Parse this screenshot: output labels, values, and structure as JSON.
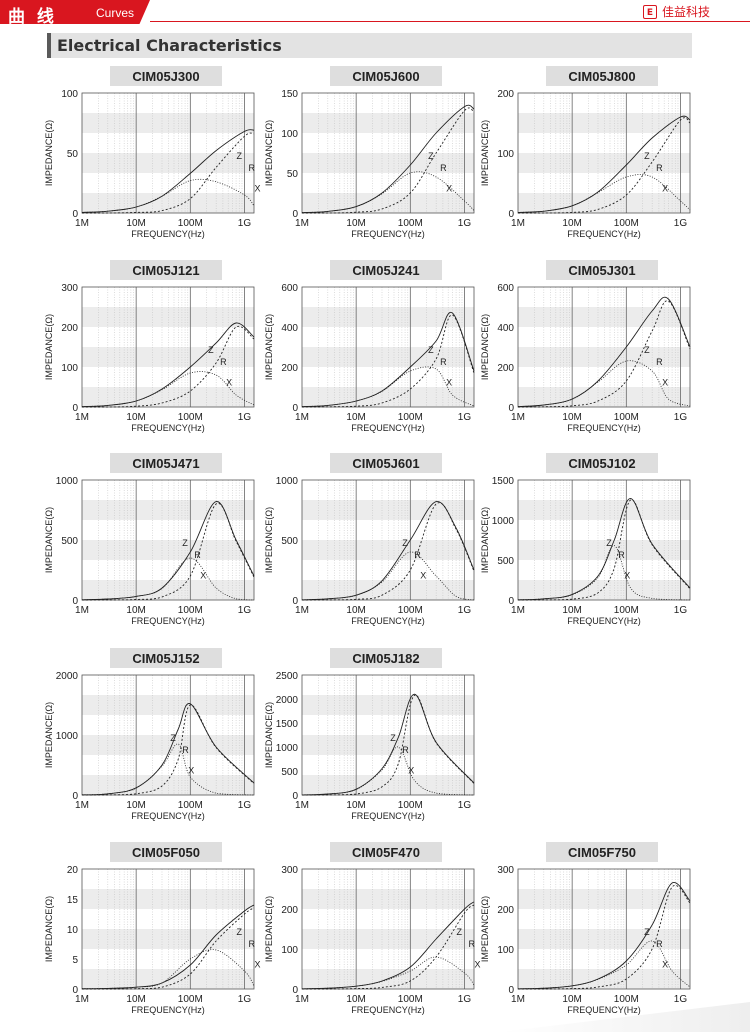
{
  "header": {
    "title_cn": "曲 线",
    "title_en": "Curves",
    "brand": "佳益科技",
    "brand_icon": "E"
  },
  "section": {
    "title": "Electrical Characteristics"
  },
  "axis": {
    "xlabel": "FREQUENCY(Hz)",
    "ylabel": "IMPEDANCE(Ω)",
    "xticks": [
      "1M",
      "10M",
      "100M",
      "1G"
    ]
  },
  "colors": {
    "accent": "#d9161f",
    "curve": "#222222",
    "grid_band": "#ececec",
    "title_bg": "#dedede"
  },
  "chart_data": [
    {
      "type": "line",
      "title": "CIM05J300",
      "xlabel": "FREQUENCY(Hz)",
      "ylabel": "IMPEDANCE(Ω)",
      "xscale": "log",
      "xlim": [
        1,
        1500
      ],
      "ylim": [
        0,
        100
      ],
      "yticks": [
        0,
        50,
        100
      ],
      "x": [
        1,
        3,
        10,
        30,
        100,
        300,
        1000,
        1500
      ],
      "series": [
        {
          "name": "Z",
          "values": [
            0.5,
            1.5,
            5,
            14,
            33,
            52,
            68,
            69
          ]
        },
        {
          "name": "R",
          "values": [
            0,
            0,
            0.5,
            2,
            12,
            38,
            64,
            66
          ]
        },
        {
          "name": "X",
          "values": [
            0.5,
            1.5,
            5,
            14,
            27,
            26,
            15,
            6
          ]
        }
      ]
    },
    {
      "type": "line",
      "title": "CIM05J600",
      "xlabel": "FREQUENCY(Hz)",
      "ylabel": "IMPEDANCE(Ω)",
      "xscale": "log",
      "xlim": [
        1,
        1500
      ],
      "ylim": [
        0,
        150
      ],
      "yticks": [
        0,
        50,
        100,
        150
      ],
      "x": [
        1,
        3,
        10,
        30,
        100,
        300,
        1000,
        1500
      ],
      "series": [
        {
          "name": "Z",
          "values": [
            0.5,
            2,
            8,
            25,
            60,
            100,
            133,
            130
          ]
        },
        {
          "name": "R",
          "values": [
            0,
            0,
            1,
            5,
            25,
            75,
            128,
            126
          ]
        },
        {
          "name": "X",
          "values": [
            0.5,
            2,
            8,
            24,
            50,
            45,
            15,
            3
          ]
        }
      ]
    },
    {
      "type": "line",
      "title": "CIM05J800",
      "xlabel": "FREQUENCY(Hz)",
      "ylabel": "IMPEDANCE(Ω)",
      "xscale": "log",
      "xlim": [
        1,
        1500
      ],
      "ylim": [
        0,
        200
      ],
      "yticks": [
        0,
        100,
        200
      ],
      "x": [
        1,
        3,
        10,
        30,
        100,
        300,
        1000,
        1500
      ],
      "series": [
        {
          "name": "Z",
          "values": [
            1,
            3,
            12,
            35,
            80,
            125,
            160,
            155
          ]
        },
        {
          "name": "R",
          "values": [
            0,
            0,
            1,
            6,
            30,
            85,
            155,
            150
          ]
        },
        {
          "name": "X",
          "values": [
            1,
            3,
            12,
            34,
            60,
            60,
            20,
            5
          ]
        }
      ]
    },
    {
      "type": "line",
      "title": "CIM05J121",
      "xlabel": "FREQUENCY(Hz)",
      "ylabel": "IMPEDANCE(Ω)",
      "xscale": "log",
      "xlim": [
        1,
        1500
      ],
      "ylim": [
        0,
        300
      ],
      "yticks": [
        0,
        100,
        200,
        300
      ],
      "x": [
        1,
        3,
        10,
        30,
        100,
        300,
        700,
        1500
      ],
      "series": [
        {
          "name": "Z",
          "values": [
            1,
            4,
            15,
            45,
            100,
            160,
            210,
            175
          ]
        },
        {
          "name": "R",
          "values": [
            0,
            0,
            2,
            10,
            40,
            110,
            200,
            170
          ]
        },
        {
          "name": "X",
          "values": [
            1,
            4,
            15,
            43,
            85,
            80,
            30,
            5
          ]
        }
      ]
    },
    {
      "type": "line",
      "title": "CIM05J241",
      "xlabel": "FREQUENCY(Hz)",
      "ylabel": "IMPEDANCE(Ω)",
      "xscale": "log",
      "xlim": [
        1,
        1500
      ],
      "ylim": [
        0,
        600
      ],
      "yticks": [
        0,
        200,
        400,
        600
      ],
      "x": [
        1,
        3,
        10,
        30,
        100,
        300,
        600,
        1500
      ],
      "series": [
        {
          "name": "Z",
          "values": [
            2,
            8,
            30,
            80,
            200,
            330,
            470,
            180
          ]
        },
        {
          "name": "R",
          "values": [
            0,
            1,
            4,
            20,
            90,
            240,
            460,
            170
          ]
        },
        {
          "name": "X",
          "values": [
            2,
            8,
            30,
            78,
            180,
            190,
            60,
            5
          ]
        }
      ]
    },
    {
      "type": "line",
      "title": "CIM05J301",
      "xlabel": "FREQUENCY(Hz)",
      "ylabel": "IMPEDANCE(Ω)",
      "xscale": "log",
      "xlim": [
        1,
        1500
      ],
      "ylim": [
        0,
        600
      ],
      "yticks": [
        0,
        200,
        400,
        600
      ],
      "x": [
        1,
        3,
        10,
        30,
        100,
        300,
        600,
        1500
      ],
      "series": [
        {
          "name": "Z",
          "values": [
            2,
            10,
            40,
            130,
            300,
            480,
            540,
            300
          ]
        },
        {
          "name": "R",
          "values": [
            0,
            1,
            6,
            30,
            130,
            380,
            530,
            290
          ]
        },
        {
          "name": "X",
          "values": [
            2,
            10,
            39,
            125,
            230,
            180,
            40,
            5
          ]
        }
      ]
    },
    {
      "type": "line",
      "title": "CIM05J471",
      "xlabel": "FREQUENCY(Hz)",
      "ylabel": "IMPEDANCE(Ω)",
      "xscale": "log",
      "xlim": [
        1,
        1500
      ],
      "ylim": [
        0,
        1000
      ],
      "yticks": [
        0,
        500,
        1000
      ],
      "x": [
        1,
        3,
        10,
        30,
        100,
        300,
        700,
        1500
      ],
      "series": [
        {
          "name": "Z",
          "values": [
            2,
            8,
            30,
            100,
            400,
            820,
            500,
            200
          ]
        },
        {
          "name": "R",
          "values": [
            0,
            1,
            4,
            25,
            200,
            800,
            490,
            190
          ]
        },
        {
          "name": "X",
          "values": [
            2,
            8,
            30,
            95,
            350,
            100,
            10,
            0
          ]
        }
      ]
    },
    {
      "type": "line",
      "title": "CIM05J601",
      "xlabel": "FREQUENCY(Hz)",
      "ylabel": "IMPEDANCE(Ω)",
      "xscale": "log",
      "xlim": [
        1,
        1500
      ],
      "ylim": [
        0,
        1000
      ],
      "yticks": [
        0,
        500,
        1000
      ],
      "x": [
        1,
        3,
        10,
        30,
        100,
        300,
        700,
        1500
      ],
      "series": [
        {
          "name": "Z",
          "values": [
            2,
            10,
            40,
            160,
            500,
            820,
            600,
            250
          ]
        },
        {
          "name": "R",
          "values": [
            0,
            1,
            6,
            40,
            250,
            800,
            590,
            240
          ]
        },
        {
          "name": "X",
          "values": [
            2,
            10,
            39,
            150,
            400,
            200,
            30,
            0
          ]
        }
      ]
    },
    {
      "type": "line",
      "title": "CIM05J102",
      "xlabel": "FREQUENCY(Hz)",
      "ylabel": "IMPEDANCE(Ω)",
      "xscale": "log",
      "xlim": [
        1,
        1500
      ],
      "ylim": [
        0,
        1500
      ],
      "yticks": [
        0,
        500,
        1000,
        1500
      ],
      "x": [
        1,
        3,
        10,
        30,
        60,
        120,
        300,
        1500
      ],
      "series": [
        {
          "name": "Z",
          "values": [
            2,
            15,
            70,
            300,
            750,
            1270,
            700,
            150
          ]
        },
        {
          "name": "R",
          "values": [
            0,
            1,
            10,
            90,
            400,
            1250,
            690,
            140
          ]
        },
        {
          "name": "X",
          "values": [
            2,
            15,
            65,
            280,
            680,
            150,
            20,
            0
          ]
        }
      ]
    },
    {
      "type": "line",
      "title": "CIM05J152",
      "xlabel": "FREQUENCY(Hz)",
      "ylabel": "IMPEDANCE(Ω)",
      "xscale": "log",
      "xlim": [
        1,
        1500
      ],
      "ylim": [
        0,
        2000
      ],
      "yticks": [
        0,
        1000,
        2000
      ],
      "x": [
        1,
        3,
        10,
        30,
        60,
        100,
        300,
        1500
      ],
      "series": [
        {
          "name": "Z",
          "values": [
            3,
            20,
            120,
            500,
            1100,
            1520,
            800,
            200
          ]
        },
        {
          "name": "R",
          "values": [
            0,
            2,
            20,
            150,
            600,
            1500,
            790,
            190
          ]
        },
        {
          "name": "X",
          "values": [
            3,
            20,
            115,
            480,
            850,
            300,
            30,
            0
          ]
        }
      ]
    },
    {
      "type": "line",
      "title": "CIM05J182",
      "xlabel": "FREQUENCY(Hz)",
      "ylabel": "IMPEDANCE(Ω)",
      "xscale": "log",
      "xlim": [
        1,
        1500
      ],
      "ylim": [
        0,
        2500
      ],
      "yticks": [
        0,
        500,
        1000,
        1500,
        2000,
        2500
      ],
      "x": [
        1,
        3,
        10,
        30,
        60,
        120,
        300,
        1500
      ],
      "series": [
        {
          "name": "Z",
          "values": [
            3,
            20,
            120,
            550,
            1200,
            2100,
            1100,
            250
          ]
        },
        {
          "name": "R",
          "values": [
            0,
            2,
            20,
            170,
            650,
            2080,
            1090,
            240
          ]
        },
        {
          "name": "X",
          "values": [
            3,
            20,
            115,
            520,
            1000,
            300,
            40,
            0
          ]
        }
      ]
    },
    {
      "type": "line",
      "title": "CIM05F050",
      "xlabel": "FREQUENCY(Hz)",
      "ylabel": "IMPEDANCE(Ω)",
      "xscale": "log",
      "xlim": [
        1,
        1500
      ],
      "ylim": [
        0,
        20
      ],
      "yticks": [
        0,
        5,
        10,
        15,
        20
      ],
      "x": [
        1,
        3,
        10,
        30,
        100,
        300,
        1000,
        1500
      ],
      "series": [
        {
          "name": "Z",
          "values": [
            0.05,
            0.1,
            0.3,
            1,
            4,
            9,
            13,
            14
          ]
        },
        {
          "name": "R",
          "values": [
            0,
            0,
            0.05,
            0.3,
            2.5,
            8,
            12.5,
            13.5
          ]
        },
        {
          "name": "X",
          "values": [
            0.05,
            0.1,
            0.3,
            1,
            5,
            6.5,
            3,
            0.5
          ]
        }
      ]
    },
    {
      "type": "line",
      "title": "CIM05F470",
      "xlabel": "FREQUENCY(Hz)",
      "ylabel": "IMPEDANCE(Ω)",
      "xscale": "log",
      "xlim": [
        1,
        1500
      ],
      "ylim": [
        0,
        300
      ],
      "yticks": [
        0,
        100,
        200,
        300
      ],
      "x": [
        1,
        3,
        10,
        30,
        100,
        300,
        1000,
        1500
      ],
      "series": [
        {
          "name": "Z",
          "values": [
            0.5,
            2,
            7,
            20,
            55,
            125,
            200,
            218
          ]
        },
        {
          "name": "R",
          "values": [
            0,
            0,
            1,
            4,
            20,
            80,
            190,
            210
          ]
        },
        {
          "name": "X",
          "values": [
            0.5,
            2,
            7,
            19,
            45,
            80,
            40,
            10
          ]
        }
      ]
    },
    {
      "type": "line",
      "title": "CIM05F750",
      "xlabel": "FREQUENCY(Hz)",
      "ylabel": "IMPEDANCE(Ω)",
      "xscale": "log",
      "xlim": [
        1,
        1500
      ],
      "ylim": [
        0,
        300
      ],
      "yticks": [
        0,
        100,
        200,
        300
      ],
      "x": [
        1,
        3,
        10,
        30,
        100,
        300,
        700,
        1500
      ],
      "series": [
        {
          "name": "Z",
          "values": [
            0.5,
            2,
            8,
            25,
            70,
            160,
            265,
            220
          ]
        },
        {
          "name": "R",
          "values": [
            0,
            0,
            1,
            5,
            25,
            100,
            255,
            215
          ]
        },
        {
          "name": "X",
          "values": [
            0.5,
            2,
            8,
            24,
            60,
            120,
            45,
            5
          ]
        }
      ]
    }
  ]
}
